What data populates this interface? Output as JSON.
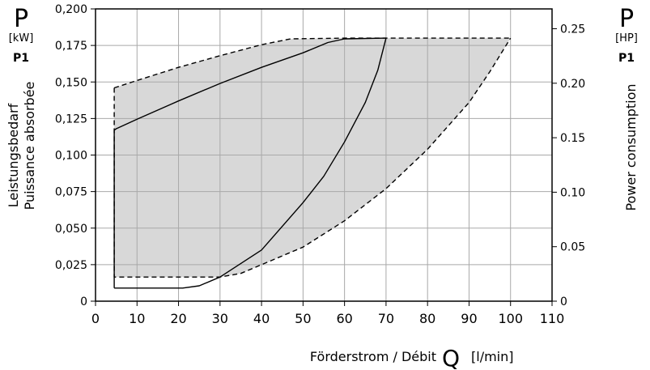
{
  "chart_data": {
    "type": "area",
    "left_axis": {
      "symbol": "P",
      "unit": "[kW]",
      "sub": "P1",
      "label_line1": "Leistungsbedarf",
      "label_line2": "Puissance absorbée",
      "ylim": [
        0,
        0.2
      ],
      "ticks": [
        "0",
        "0,025",
        "0,050",
        "0,075",
        "0,100",
        "0,125",
        "0,150",
        "0,175",
        "0,200"
      ],
      "tick_values": [
        0,
        0.025,
        0.05,
        0.075,
        0.1,
        0.125,
        0.15,
        0.175,
        0.2
      ]
    },
    "right_axis": {
      "symbol": "P",
      "unit": "[HP]",
      "sub": "P1",
      "label": "Power consumption",
      "ticks": [
        "0",
        "0.05",
        "0.10",
        "0.15",
        "0.20",
        "0.25"
      ],
      "tick_values": [
        0,
        0.05,
        0.1,
        0.15,
        0.2,
        0.25
      ],
      "kw_per_hp": 0.7457
    },
    "x_axis": {
      "label": "Förderstrom / Débit",
      "symbol": "Q",
      "unit": "[l/min]",
      "xlim": [
        0,
        110
      ],
      "ticks": [
        "0",
        "10",
        "20",
        "30",
        "40",
        "50",
        "60",
        "70",
        "80",
        "90",
        "100",
        "110"
      ],
      "tick_values": [
        0,
        10,
        20,
        30,
        40,
        50,
        60,
        70,
        80,
        90,
        100,
        110
      ]
    },
    "grid": true,
    "shaded_envelope": {
      "fill": "#d8d8d8",
      "upper": [
        [
          4.5,
          0.146
        ],
        [
          10,
          0.151
        ],
        [
          20,
          0.16
        ],
        [
          30,
          0.168
        ],
        [
          40,
          0.1755
        ],
        [
          47,
          0.1795
        ],
        [
          60,
          0.18
        ],
        [
          80,
          0.18
        ],
        [
          100,
          0.18
        ]
      ],
      "lower": [
        [
          100,
          0.18
        ],
        [
          95,
          0.157
        ],
        [
          90,
          0.136
        ],
        [
          80,
          0.104
        ],
        [
          70,
          0.077
        ],
        [
          60,
          0.055
        ],
        [
          50,
          0.037
        ],
        [
          40,
          0.025
        ],
        [
          35,
          0.019
        ],
        [
          30,
          0.0165
        ],
        [
          4.5,
          0.0165
        ],
        [
          4.5,
          0.146
        ]
      ]
    },
    "series": [
      {
        "style": "solid",
        "points": [
          [
            4.5,
            0.009
          ],
          [
            21,
            0.009
          ],
          [
            25,
            0.0105
          ],
          [
            30,
            0.0165
          ],
          [
            40,
            0.035
          ],
          [
            50,
            0.0675
          ],
          [
            55,
            0.0855
          ],
          [
            60,
            0.109
          ],
          [
            65,
            0.136
          ],
          [
            68,
            0.158
          ],
          [
            70,
            0.18
          ]
        ]
      },
      {
        "style": "solid",
        "points": [
          [
            4.5,
            0.009
          ],
          [
            4.5,
            0.117
          ],
          [
            5,
            0.118
          ],
          [
            10,
            0.1245
          ],
          [
            20,
            0.137
          ],
          [
            30,
            0.149
          ],
          [
            40,
            0.16
          ],
          [
            50,
            0.17
          ],
          [
            56,
            0.177
          ],
          [
            60,
            0.1795
          ],
          [
            70,
            0.18
          ]
        ]
      },
      {
        "style": "dashed",
        "points": [
          [
            4.5,
            0.146
          ],
          [
            10,
            0.151
          ],
          [
            20,
            0.16
          ],
          [
            30,
            0.168
          ],
          [
            40,
            0.1755
          ],
          [
            47,
            0.1795
          ],
          [
            60,
            0.18
          ],
          [
            80,
            0.18
          ],
          [
            100,
            0.18
          ]
        ]
      },
      {
        "style": "dashed",
        "points": [
          [
            4.5,
            0.146
          ],
          [
            4.5,
            0.0165
          ],
          [
            30,
            0.0165
          ],
          [
            35,
            0.019
          ],
          [
            40,
            0.025
          ],
          [
            50,
            0.037
          ],
          [
            60,
            0.055
          ],
          [
            70,
            0.077
          ],
          [
            80,
            0.104
          ],
          [
            90,
            0.136
          ],
          [
            95,
            0.157
          ],
          [
            100,
            0.18
          ]
        ]
      }
    ]
  }
}
